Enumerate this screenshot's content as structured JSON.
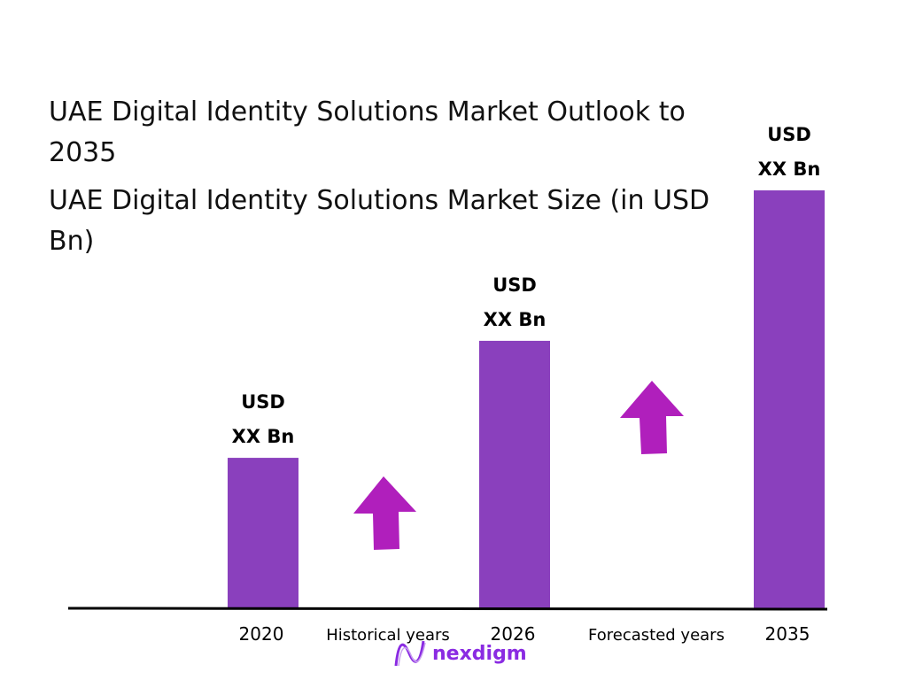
{
  "chart_data": {
    "type": "bar",
    "title": "UAE Digital Identity Solutions Market Outlook to 2035",
    "subtitle": "UAE Digital Identity Solutions Market Size (in USD Bn)",
    "categories": [
      "2020",
      "2026",
      "2035"
    ],
    "relative_values": [
      0.36,
      0.64,
      1.0
    ],
    "data_labels": [
      [
        "USD",
        "XX Bn"
      ],
      [
        "USD",
        "XX Bn"
      ],
      [
        "USD",
        "XX Bn"
      ]
    ],
    "band_labels": [
      "Historical years",
      "Forecasted years"
    ],
    "grid": false,
    "colors": {
      "bar": "#8a40bd",
      "arrow": "#b01fbc",
      "axis": "#000000"
    }
  },
  "brand": {
    "name": "nexdigm",
    "color": "#8a2be2"
  }
}
